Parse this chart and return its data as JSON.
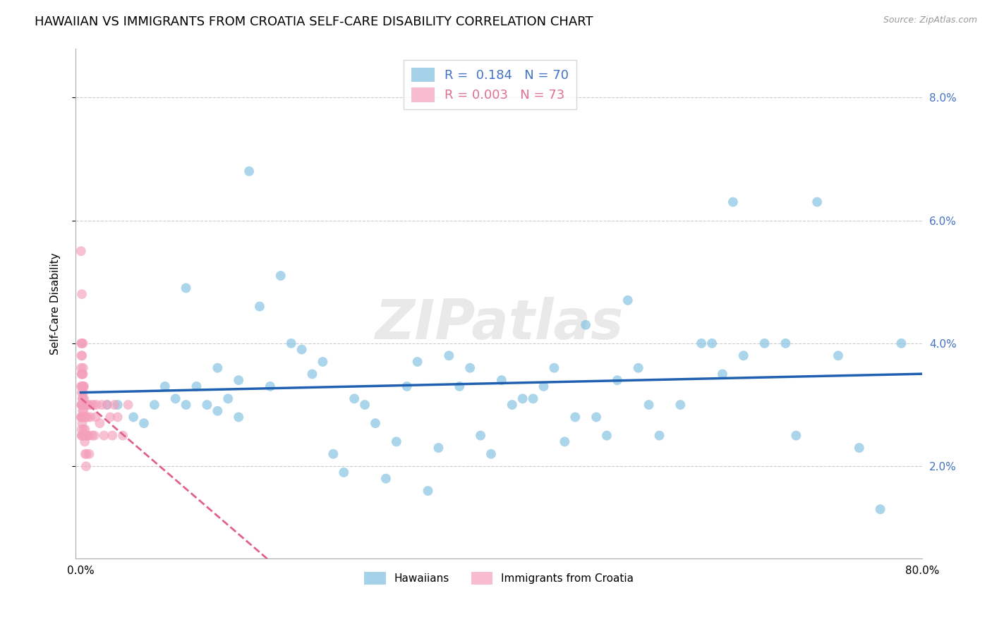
{
  "title": "HAWAIIAN VS IMMIGRANTS FROM CROATIA SELF-CARE DISABILITY CORRELATION CHART",
  "source": "Source: ZipAtlas.com",
  "ylabel": "Self-Care Disability",
  "xlim": [
    -0.005,
    0.8
  ],
  "ylim": [
    0.005,
    0.088
  ],
  "yticks": [
    0.02,
    0.04,
    0.06,
    0.08
  ],
  "ytick_labels": [
    "2.0%",
    "4.0%",
    "6.0%",
    "8.0%"
  ],
  "xticks": [
    0.0,
    0.1,
    0.2,
    0.3,
    0.4,
    0.5,
    0.6,
    0.7,
    0.8
  ],
  "xtick_labels": [
    "0.0%",
    "",
    "",
    "",
    "",
    "",
    "",
    "",
    "80.0%"
  ],
  "hawaiians_color": "#7fbfdf",
  "croatia_color": "#f4a0bb",
  "trend_blue": "#2060b0",
  "trend_pink": "#e06090",
  "R_hawaiians": 0.184,
  "N_hawaiians": 70,
  "R_croatia": 0.003,
  "N_croatia": 73,
  "legend_label_hawaiians": "Hawaiians",
  "legend_label_croatia": "Immigrants from Croatia",
  "background_color": "#ffffff",
  "title_fontsize": 13,
  "axis_label_fontsize": 11,
  "tick_fontsize": 11,
  "watermark": "ZIPatlas",
  "hawaiians_x": [
    0.025,
    0.035,
    0.05,
    0.06,
    0.07,
    0.08,
    0.09,
    0.1,
    0.1,
    0.11,
    0.12,
    0.13,
    0.13,
    0.14,
    0.15,
    0.15,
    0.16,
    0.17,
    0.18,
    0.19,
    0.2,
    0.21,
    0.22,
    0.23,
    0.24,
    0.25,
    0.26,
    0.27,
    0.28,
    0.29,
    0.3,
    0.31,
    0.32,
    0.33,
    0.34,
    0.35,
    0.36,
    0.37,
    0.38,
    0.39,
    0.4,
    0.41,
    0.42,
    0.43,
    0.44,
    0.45,
    0.46,
    0.47,
    0.48,
    0.49,
    0.5,
    0.51,
    0.52,
    0.53,
    0.54,
    0.55,
    0.57,
    0.59,
    0.6,
    0.61,
    0.62,
    0.63,
    0.65,
    0.67,
    0.68,
    0.7,
    0.72,
    0.74,
    0.76,
    0.78
  ],
  "hawaiians_y": [
    0.03,
    0.03,
    0.028,
    0.027,
    0.03,
    0.033,
    0.031,
    0.049,
    0.03,
    0.033,
    0.03,
    0.036,
    0.029,
    0.031,
    0.028,
    0.034,
    0.068,
    0.046,
    0.033,
    0.051,
    0.04,
    0.039,
    0.035,
    0.037,
    0.022,
    0.019,
    0.031,
    0.03,
    0.027,
    0.018,
    0.024,
    0.033,
    0.037,
    0.016,
    0.023,
    0.038,
    0.033,
    0.036,
    0.025,
    0.022,
    0.034,
    0.03,
    0.031,
    0.031,
    0.033,
    0.036,
    0.024,
    0.028,
    0.043,
    0.028,
    0.025,
    0.034,
    0.047,
    0.036,
    0.03,
    0.025,
    0.03,
    0.04,
    0.04,
    0.035,
    0.063,
    0.038,
    0.04,
    0.04,
    0.025,
    0.063,
    0.038,
    0.023,
    0.013,
    0.04
  ],
  "croatia_x": [
    0.0002,
    0.0003,
    0.0003,
    0.0004,
    0.0005,
    0.0005,
    0.0006,
    0.0006,
    0.0007,
    0.0007,
    0.0008,
    0.0008,
    0.0009,
    0.001,
    0.001,
    0.001,
    0.001,
    0.001,
    0.0012,
    0.0013,
    0.0013,
    0.0014,
    0.0015,
    0.0015,
    0.0016,
    0.0017,
    0.0018,
    0.0019,
    0.002,
    0.002,
    0.002,
    0.002,
    0.0022,
    0.0023,
    0.0025,
    0.0026,
    0.0027,
    0.003,
    0.003,
    0.003,
    0.0032,
    0.0035,
    0.0038,
    0.004,
    0.004,
    0.0042,
    0.0045,
    0.005,
    0.005,
    0.0055,
    0.006,
    0.006,
    0.0065,
    0.007,
    0.0075,
    0.008,
    0.009,
    0.01,
    0.011,
    0.012,
    0.013,
    0.014,
    0.015,
    0.018,
    0.02,
    0.022,
    0.025,
    0.028,
    0.03,
    0.032,
    0.035,
    0.04,
    0.045
  ],
  "croatia_y": [
    0.055,
    0.033,
    0.028,
    0.036,
    0.04,
    0.03,
    0.038,
    0.028,
    0.035,
    0.026,
    0.032,
    0.025,
    0.03,
    0.048,
    0.04,
    0.035,
    0.03,
    0.025,
    0.038,
    0.033,
    0.027,
    0.031,
    0.035,
    0.028,
    0.033,
    0.029,
    0.031,
    0.028,
    0.04,
    0.035,
    0.03,
    0.025,
    0.036,
    0.032,
    0.033,
    0.029,
    0.026,
    0.033,
    0.03,
    0.025,
    0.031,
    0.028,
    0.024,
    0.03,
    0.026,
    0.022,
    0.028,
    0.025,
    0.02,
    0.022,
    0.03,
    0.025,
    0.028,
    0.03,
    0.025,
    0.022,
    0.028,
    0.03,
    0.025,
    0.03,
    0.025,
    0.028,
    0.03,
    0.027,
    0.03,
    0.025,
    0.03,
    0.028,
    0.025,
    0.03,
    0.028,
    0.025,
    0.03
  ]
}
